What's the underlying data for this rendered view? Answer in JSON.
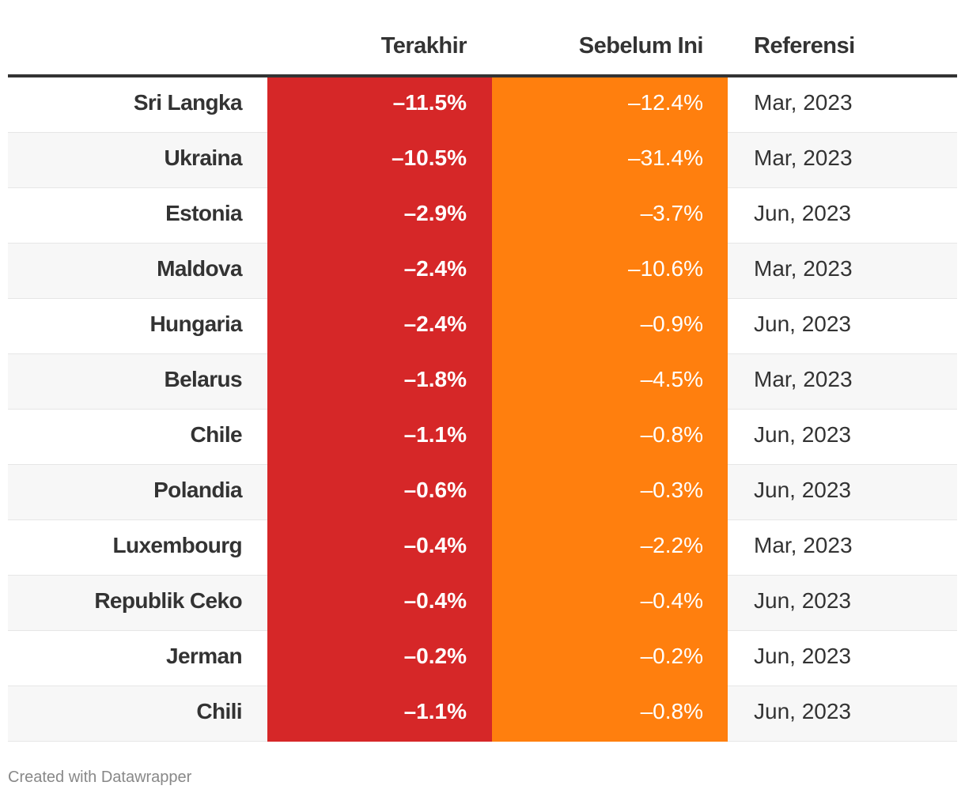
{
  "chart_data": {
    "type": "table",
    "columns": [
      "",
      "Terakhir",
      "Sebelum Ini",
      "Referensi"
    ],
    "colors": {
      "last": "#d62728",
      "prev": "#ff7f0e"
    },
    "rows": [
      {
        "country": "Sri Langka",
        "last": "–11.5%",
        "prev": "–12.4%",
        "ref": "Mar, 2023"
      },
      {
        "country": "Ukraina",
        "last": "–10.5%",
        "prev": "–31.4%",
        "ref": "Mar, 2023"
      },
      {
        "country": "Estonia",
        "last": "–2.9%",
        "prev": "–3.7%",
        "ref": "Jun, 2023"
      },
      {
        "country": "Maldova",
        "last": "–2.4%",
        "prev": "–10.6%",
        "ref": "Mar, 2023"
      },
      {
        "country": "Hungaria",
        "last": "–2.4%",
        "prev": "–0.9%",
        "ref": "Jun, 2023"
      },
      {
        "country": "Belarus",
        "last": "–1.8%",
        "prev": "–4.5%",
        "ref": "Mar, 2023"
      },
      {
        "country": "Chile",
        "last": "–1.1%",
        "prev": "–0.8%",
        "ref": "Jun, 2023"
      },
      {
        "country": "Polandia",
        "last": "–0.6%",
        "prev": "–0.3%",
        "ref": "Jun, 2023"
      },
      {
        "country": "Luxembourg",
        "last": "–0.4%",
        "prev": "–2.2%",
        "ref": "Mar, 2023"
      },
      {
        "country": "Republik Ceko",
        "last": "–0.4%",
        "prev": "–0.4%",
        "ref": "Jun, 2023"
      },
      {
        "country": "Jerman",
        "last": "–0.2%",
        "prev": "–0.2%",
        "ref": "Jun, 2023"
      },
      {
        "country": "Chili",
        "last": "–1.1%",
        "prev": "–0.8%",
        "ref": "Jun, 2023"
      }
    ]
  },
  "footer": "Created with Datawrapper"
}
